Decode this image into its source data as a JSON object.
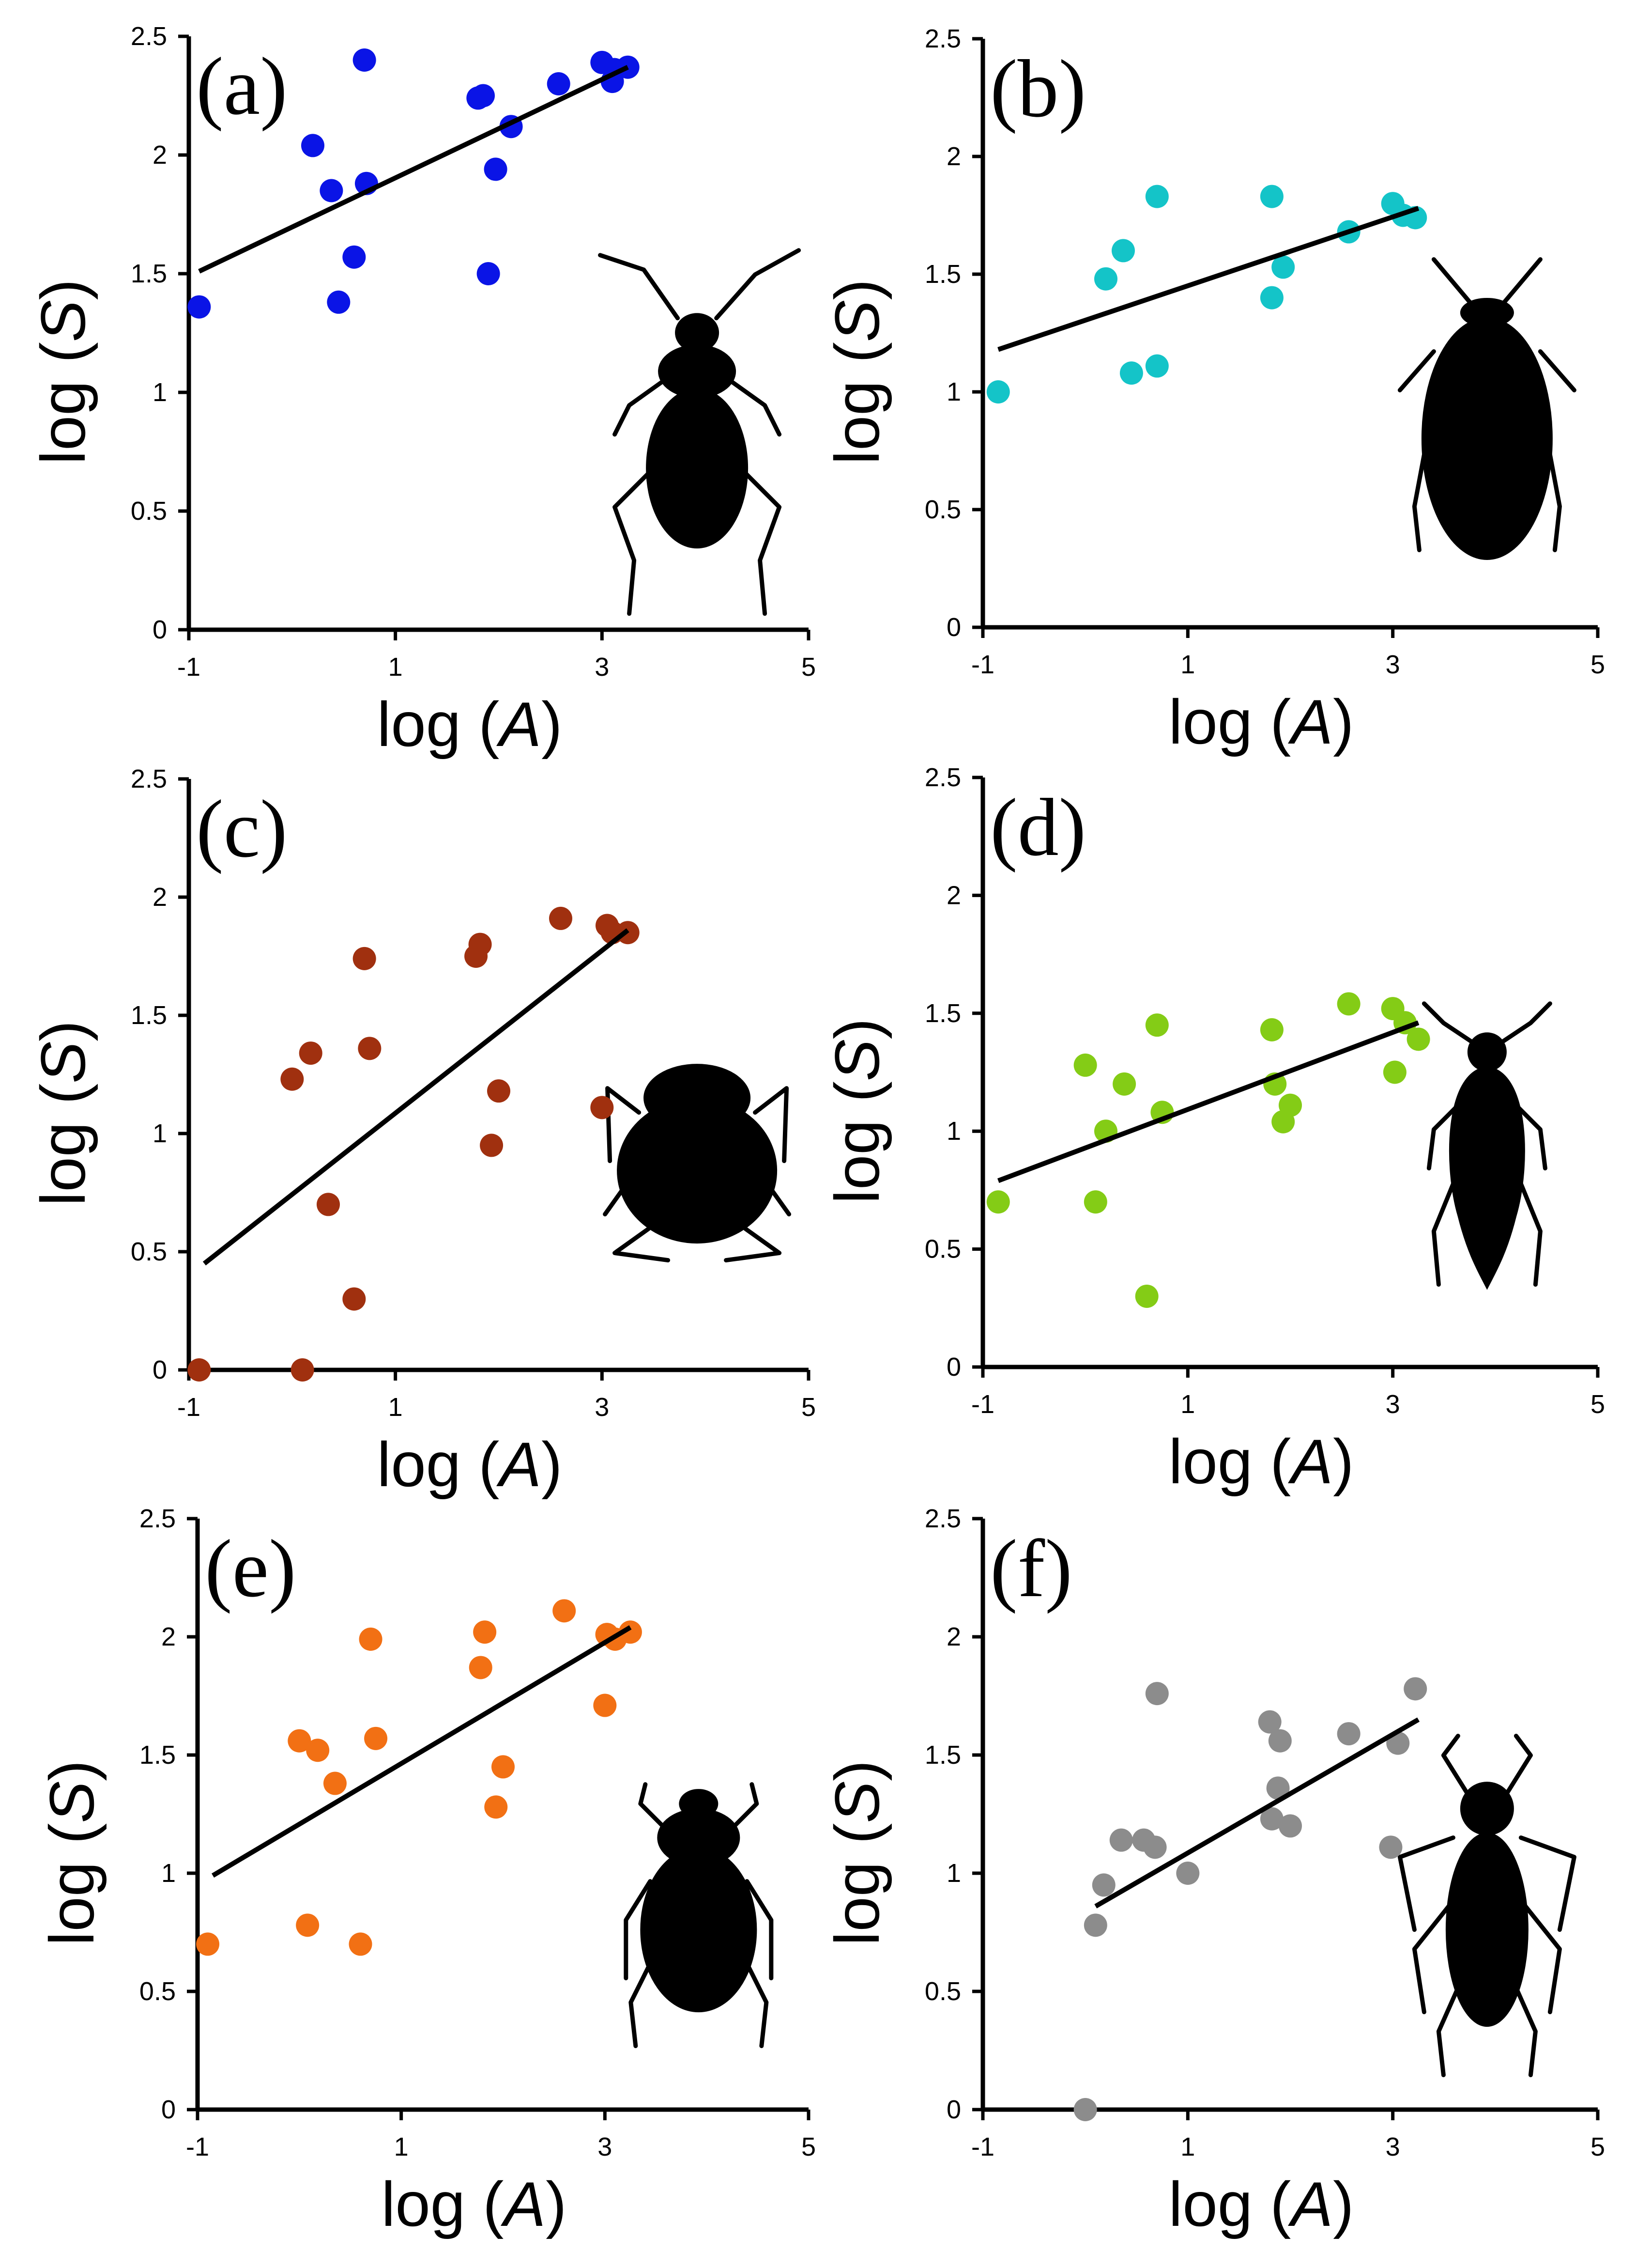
{
  "chart_data": [
    {
      "type": "scatter",
      "panel_label": "(a)",
      "color": "#0a14e6",
      "xlabel_prefix": "log (",
      "xlabel_var": "A",
      "xlabel_suffix": ")",
      "ylabel_prefix": "log (",
      "ylabel_var": "S",
      "ylabel_suffix": ")",
      "xlim": [
        -1,
        5
      ],
      "ylim": [
        0,
        2.5
      ],
      "xticks": [
        "-1",
        "1",
        "3",
        "5"
      ],
      "yticks": [
        "0",
        "0.5",
        "1",
        "1.5",
        "2",
        "2.5"
      ],
      "silhouette": "ground-beetle-icon",
      "points": [
        [
          -0.9,
          1.36
        ],
        [
          0.2,
          2.04
        ],
        [
          0.38,
          1.85
        ],
        [
          0.45,
          1.38
        ],
        [
          0.6,
          1.57
        ],
        [
          0.7,
          2.4
        ],
        [
          0.72,
          1.88
        ],
        [
          1.8,
          2.24
        ],
        [
          1.85,
          2.25
        ],
        [
          1.9,
          1.5
        ],
        [
          1.97,
          1.94
        ],
        [
          2.12,
          2.12
        ],
        [
          2.58,
          2.3
        ],
        [
          3.0,
          2.39
        ],
        [
          3.1,
          2.31
        ],
        [
          3.12,
          2.36
        ],
        [
          3.25,
          2.37
        ]
      ],
      "trend": [
        [
          -0.9,
          1.51
        ],
        [
          3.25,
          2.37
        ]
      ]
    },
    {
      "type": "scatter",
      "panel_label": "(b)",
      "color": "#14c4c8",
      "xlabel_prefix": "log (",
      "xlabel_var": "A",
      "xlabel_suffix": ")",
      "ylabel_prefix": "log (",
      "ylabel_var": "S",
      "ylabel_suffix": ")",
      "xlim": [
        -1,
        5
      ],
      "ylim": [
        0,
        2.5
      ],
      "xticks": [
        "-1",
        "1",
        "3",
        "5"
      ],
      "yticks": [
        "0",
        "0.5",
        "1",
        "1.5",
        "2",
        "2.5"
      ],
      "silhouette": "diving-beetle-icon",
      "points": [
        [
          -0.85,
          1.0
        ],
        [
          0.2,
          1.48
        ],
        [
          0.37,
          1.6
        ],
        [
          0.45,
          1.08
        ],
        [
          0.7,
          1.83
        ],
        [
          0.7,
          1.11
        ],
        [
          1.82,
          1.83
        ],
        [
          1.82,
          1.4
        ],
        [
          1.93,
          1.53
        ],
        [
          2.57,
          1.68
        ],
        [
          3.0,
          1.8
        ],
        [
          3.1,
          1.75
        ],
        [
          3.22,
          1.74
        ]
      ],
      "trend": [
        [
          -0.85,
          1.18
        ],
        [
          3.25,
          1.78
        ]
      ]
    },
    {
      "type": "scatter",
      "panel_label": "(c)",
      "color": "#a0300f",
      "xlabel_prefix": "log (",
      "xlabel_var": "A",
      "xlabel_suffix": ")",
      "ylabel_prefix": "log (",
      "ylabel_var": "S",
      "ylabel_suffix": ")",
      "xlim": [
        -1,
        5
      ],
      "ylim": [
        0,
        2.5
      ],
      "xticks": [
        "-1",
        "1",
        "3",
        "5"
      ],
      "yticks": [
        "0",
        "0.5",
        "1",
        "1.5",
        "2",
        "2.5"
      ],
      "silhouette": "dung-beetle-icon",
      "points": [
        [
          -0.9,
          0.0
        ],
        [
          0.0,
          1.23
        ],
        [
          0.1,
          0.0
        ],
        [
          0.18,
          1.34
        ],
        [
          0.35,
          0.7
        ],
        [
          0.6,
          0.3
        ],
        [
          0.7,
          1.74
        ],
        [
          0.75,
          1.36
        ],
        [
          1.78,
          1.75
        ],
        [
          1.82,
          1.8
        ],
        [
          1.93,
          0.95
        ],
        [
          2.0,
          1.18
        ],
        [
          2.6,
          1.91
        ],
        [
          3.0,
          1.11
        ],
        [
          3.05,
          1.88
        ],
        [
          3.1,
          1.85
        ],
        [
          3.25,
          1.85
        ]
      ],
      "trend": [
        [
          -0.85,
          0.45
        ],
        [
          3.25,
          1.86
        ]
      ]
    },
    {
      "type": "scatter",
      "panel_label": "(d)",
      "color": "#84cc16",
      "xlabel_prefix": "log (",
      "xlabel_var": "A",
      "xlabel_suffix": ")",
      "ylabel_prefix": "log (",
      "ylabel_var": "S",
      "ylabel_suffix": ")",
      "xlim": [
        -1,
        5
      ],
      "ylim": [
        0,
        2.5
      ],
      "xticks": [
        "-1",
        "1",
        "3",
        "5"
      ],
      "yticks": [
        "0",
        "0.5",
        "1",
        "1.5",
        "2",
        "2.5"
      ],
      "silhouette": "whirligig-beetle-icon",
      "points": [
        [
          -0.85,
          0.7
        ],
        [
          0.0,
          1.28
        ],
        [
          0.1,
          0.7
        ],
        [
          0.2,
          1.0
        ],
        [
          0.38,
          1.2
        ],
        [
          0.6,
          0.3
        ],
        [
          0.7,
          1.45
        ],
        [
          0.75,
          1.08
        ],
        [
          1.82,
          1.43
        ],
        [
          1.85,
          1.2
        ],
        [
          1.93,
          1.04
        ],
        [
          2.0,
          1.11
        ],
        [
          2.57,
          1.54
        ],
        [
          3.0,
          1.52
        ],
        [
          3.02,
          1.25
        ],
        [
          3.12,
          1.46
        ],
        [
          3.25,
          1.39
        ]
      ],
      "trend": [
        [
          -0.85,
          0.79
        ],
        [
          3.25,
          1.46
        ]
      ]
    },
    {
      "type": "scatter",
      "panel_label": "(e)",
      "color": "#f27014",
      "xlabel_prefix": "log (",
      "xlabel_var": "A",
      "xlabel_suffix": ")",
      "ylabel_prefix": "log (",
      "ylabel_var": "S",
      "ylabel_suffix": ")",
      "xlim": [
        -1,
        5
      ],
      "ylim": [
        0,
        2.5
      ],
      "xticks": [
        "-1",
        "1",
        "3",
        "5"
      ],
      "yticks": [
        "0",
        "0.5",
        "1",
        "1.5",
        "2",
        "2.5"
      ],
      "silhouette": "scarab-beetle-icon",
      "points": [
        [
          -0.9,
          0.7
        ],
        [
          0.0,
          1.56
        ],
        [
          0.08,
          0.78
        ],
        [
          0.18,
          1.52
        ],
        [
          0.35,
          1.38
        ],
        [
          0.6,
          0.7
        ],
        [
          0.7,
          1.99
        ],
        [
          0.75,
          1.57
        ],
        [
          1.78,
          1.87
        ],
        [
          1.82,
          2.02
        ],
        [
          1.93,
          1.28
        ],
        [
          2.0,
          1.45
        ],
        [
          2.6,
          2.11
        ],
        [
          3.0,
          1.71
        ],
        [
          3.02,
          2.01
        ],
        [
          3.1,
          1.99
        ],
        [
          3.25,
          2.02
        ]
      ],
      "trend": [
        [
          -0.85,
          0.99
        ],
        [
          3.25,
          2.04
        ]
      ]
    },
    {
      "type": "scatter",
      "panel_label": "(f)",
      "color": "#8c8c8c",
      "xlabel_prefix": "log (",
      "xlabel_var": "A",
      "xlabel_suffix": ")",
      "ylabel_prefix": "log (",
      "ylabel_var": "S",
      "ylabel_suffix": ")",
      "xlim": [
        -1,
        5
      ],
      "ylim": [
        0,
        2.5
      ],
      "xticks": [
        "-1",
        "1",
        "3",
        "5"
      ],
      "yticks": [
        "0",
        "0.5",
        "1",
        "1.5",
        "2",
        "2.5"
      ],
      "silhouette": "weevil-beetle-icon",
      "points": [
        [
          0.0,
          0.0
        ],
        [
          0.1,
          0.78
        ],
        [
          0.18,
          0.95
        ],
        [
          0.35,
          1.14
        ],
        [
          0.57,
          1.14
        ],
        [
          0.68,
          1.11
        ],
        [
          0.7,
          1.76
        ],
        [
          1.0,
          1.0
        ],
        [
          1.8,
          1.64
        ],
        [
          1.82,
          1.23
        ],
        [
          1.88,
          1.36
        ],
        [
          1.9,
          1.56
        ],
        [
          2.0,
          1.2
        ],
        [
          2.57,
          1.59
        ],
        [
          2.98,
          1.11
        ],
        [
          3.05,
          1.55
        ],
        [
          3.22,
          1.78
        ]
      ],
      "trend": [
        [
          0.1,
          0.86
        ],
        [
          3.25,
          1.65
        ]
      ]
    }
  ]
}
